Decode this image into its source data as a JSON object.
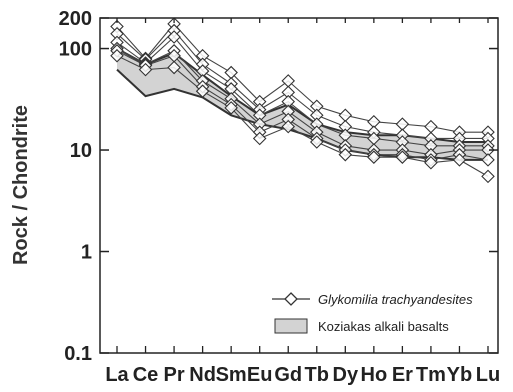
{
  "chart_data": {
    "type": "line",
    "ylabel": "Rock / Chondrite",
    "y_scale": "log",
    "ylim": [
      0.1,
      200
    ],
    "yticks": [
      {
        "value": 0.1,
        "label": "0.1"
      },
      {
        "value": 1,
        "label": "1"
      },
      {
        "value": 10,
        "label": "10"
      },
      {
        "value": 100,
        "label": "100"
      },
      {
        "value": 200,
        "label": "200"
      }
    ],
    "categories": [
      "La",
      "Ce",
      "Pr",
      "Nd",
      "Sm",
      "Eu",
      "Gd",
      "Tb",
      "Dy",
      "Ho",
      "Er",
      "Tm",
      "Yb",
      "Lu"
    ],
    "series": [
      {
        "name": "Glykomilia trachyandesites",
        "marker": "diamond",
        "lines": [
          {
            "x": [
              "La",
              "Ce",
              "Pr",
              "Nd",
              "Sm",
              "Eu",
              "Gd",
              "Tb",
              "Dy",
              "Ho",
              "Er",
              "Tm",
              "Yb",
              "Lu"
            ],
            "y": [
              165,
              80,
              175,
              85,
              58,
              30,
              48,
              27,
              22,
              19,
              18,
              17,
              15,
              15
            ]
          },
          {
            "x": [
              "La",
              "Ce",
              "Pr",
              "Nd",
              "Sm",
              "Eu",
              "Gd",
              "Tb",
              "Dy",
              "Ho",
              "Er",
              "Tm",
              "Yb",
              "Lu"
            ],
            "y": [
              140,
              78,
              150,
              70,
              45,
              25,
              37,
              22,
              17,
              15,
              14,
              13,
              13,
              13
            ]
          },
          {
            "x": [
              "La",
              "Ce",
              "Pr",
              "Nd",
              "Sm",
              "Eu",
              "Gd",
              "Tb",
              "Dy",
              "Ho",
              "Er",
              "Tm",
              "Yb",
              "Lu"
            ],
            "y": [
              115,
              72,
              130,
              60,
              40,
              22,
              30,
              18,
              14,
              13,
              12,
              11,
              11,
              11
            ]
          },
          {
            "x": [
              "La",
              "Ce",
              "Pr",
              "Nd",
              "Sm",
              "Eu",
              "Gd",
              "Tb",
              "Dy",
              "Ho",
              "Er",
              "Tm",
              "Yb",
              "Lu"
            ],
            "y": [
              100,
              70,
              95,
              48,
              32,
              18,
              24,
              15,
              11,
              10,
              10,
              9,
              10,
              10
            ]
          },
          {
            "x": [
              "La",
              "Ce",
              "Pr",
              "Nd",
              "Sm",
              "Eu",
              "Gd",
              "Tb",
              "Dy",
              "Ho",
              "Er",
              "Tm",
              "Yb",
              "Lu"
            ],
            "y": [
              95,
              68,
              85,
              42,
              28,
              15,
              20,
              13,
              10,
              9,
              9,
              8,
              9,
              8
            ]
          },
          {
            "x": [
              "La",
              "Ce",
              "Pr",
              "Nd",
              "Sm",
              "Eu",
              "Gd",
              "Tb",
              "Dy",
              "Ho",
              "Er",
              "Tm",
              "Yb",
              "Lu"
            ],
            "y": [
              85,
              62,
              65,
              38,
              26,
              13,
              17,
              12,
              9,
              8.5,
              8.5,
              7.5,
              8,
              5.5
            ]
          }
        ]
      },
      {
        "name": "Koziakas alkali basalts",
        "style": "shaded-band",
        "upper": [
          100,
          70,
          90,
          55,
          34,
          22,
          28,
          18,
          15,
          14,
          14,
          13,
          12,
          12
        ],
        "lower": [
          62,
          34,
          40,
          33,
          22,
          18,
          16,
          13,
          10,
          9,
          8.5,
          8.5,
          8,
          8
        ]
      }
    ],
    "legend_position": "bottom-right"
  }
}
